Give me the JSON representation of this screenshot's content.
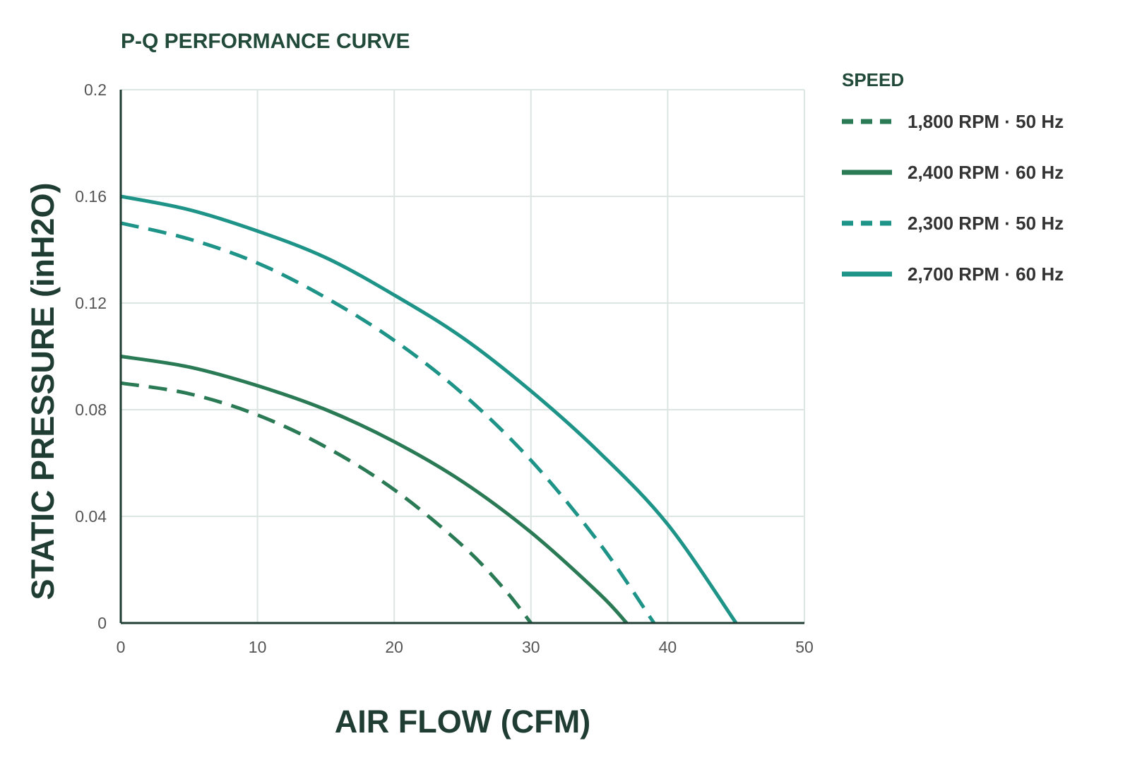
{
  "chart_data": {
    "type": "line",
    "title": "P-Q PERFORMANCE CURVE",
    "xlabel": "AIR FLOW (CFM)",
    "ylabel": "STATIC PRESSURE (inH2O)",
    "xlim": [
      0,
      50
    ],
    "ylim": [
      0,
      0.2
    ],
    "xticks": [
      "0",
      "10",
      "20",
      "30",
      "40",
      "50"
    ],
    "yticks": [
      "0",
      "0.04",
      "0.08",
      "0.12",
      "0.16",
      "0.2"
    ],
    "grid": true,
    "legend_title": "SPEED",
    "legend_position": "right",
    "series": [
      {
        "name": "1,800 RPM · 50 Hz",
        "color": "#2a7a55",
        "dashed": true,
        "x": [
          0,
          5,
          10,
          15,
          20,
          25,
          28,
          30
        ],
        "y": [
          0.09,
          0.086,
          0.078,
          0.066,
          0.05,
          0.029,
          0.013,
          0
        ]
      },
      {
        "name": "2,400 RPM · 60 Hz",
        "color": "#2a7a55",
        "dashed": false,
        "x": [
          0,
          5,
          10,
          15,
          20,
          25,
          30,
          35,
          37
        ],
        "y": [
          0.1,
          0.096,
          0.089,
          0.08,
          0.068,
          0.053,
          0.034,
          0.011,
          0
        ]
      },
      {
        "name": "2,300 RPM · 50 Hz",
        "color": "#1e9488",
        "dashed": true,
        "x": [
          0,
          5,
          10,
          15,
          20,
          25,
          30,
          35,
          39
        ],
        "y": [
          0.15,
          0.144,
          0.135,
          0.122,
          0.106,
          0.086,
          0.061,
          0.03,
          0
        ]
      },
      {
        "name": "2,700 RPM · 60 Hz",
        "color": "#1e9488",
        "dashed": false,
        "x": [
          0,
          5,
          10,
          15,
          20,
          25,
          30,
          35,
          40,
          45
        ],
        "y": [
          0.16,
          0.155,
          0.147,
          0.137,
          0.123,
          0.107,
          0.087,
          0.064,
          0.037,
          0
        ]
      }
    ]
  }
}
